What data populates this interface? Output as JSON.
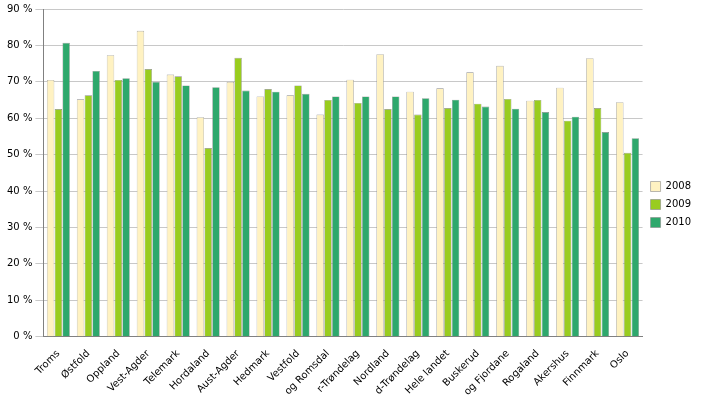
{
  "chart_data": {
    "type": "bar",
    "categories": [
      "Troms",
      "Østfold",
      "Oppland",
      "Vest-Agder",
      "Telemark",
      "Hordaland",
      "Aust-Agder",
      "Hedmark",
      "Vestfold",
      "og Romsdal",
      "r-Trøndelag",
      "Nordland",
      "d-Trøndelag",
      "Hele landet",
      "Buskerud",
      "og Fjordane",
      "Rogaland",
      "Akershus",
      "Finnmark",
      "Oslo"
    ],
    "series": [
      {
        "name": "2008",
        "color": "#fff2c2",
        "values": [
          70.5,
          65.2,
          77.3,
          84,
          72,
          60.3,
          70,
          66,
          66.3,
          61,
          70.6,
          77.6,
          67.3,
          68.2,
          72.6,
          74.4,
          64.8,
          68.4,
          76.5,
          64.4
        ]
      },
      {
        "name": "2009",
        "color": "#99cc1f",
        "values": [
          62.5,
          66.3,
          70.5,
          73.5,
          71.5,
          51.8,
          76.6,
          68,
          69,
          65,
          64.2,
          62.5,
          61,
          62.8,
          64,
          65.3,
          65,
          59.3,
          62.8,
          50.5
        ]
      },
      {
        "name": "2010",
        "color": "#2ea86c",
        "values": [
          80.7,
          73,
          71,
          70,
          69,
          68.5,
          67.6,
          67.3,
          66.7,
          66,
          66,
          66,
          65.5,
          65.1,
          63.2,
          62.6,
          61.7,
          60.4,
          56.2,
          54.5
        ]
      }
    ],
    "ylim": [
      0,
      90
    ],
    "yticks": [
      {
        "value": 0,
        "label": "0 %"
      },
      {
        "value": 10,
        "label": "10 %"
      },
      {
        "value": 20,
        "label": "20 %"
      },
      {
        "value": 30,
        "label": "30 %"
      },
      {
        "value": 40,
        "label": "40 %"
      },
      {
        "value": 50,
        "label": "50 %"
      },
      {
        "value": 60,
        "label": "60 %"
      },
      {
        "value": 70,
        "label": "70 %"
      },
      {
        "value": 80,
        "label": "80 %"
      },
      {
        "value": 90,
        "label": "90 %"
      }
    ],
    "grid": true,
    "legend": "right"
  }
}
